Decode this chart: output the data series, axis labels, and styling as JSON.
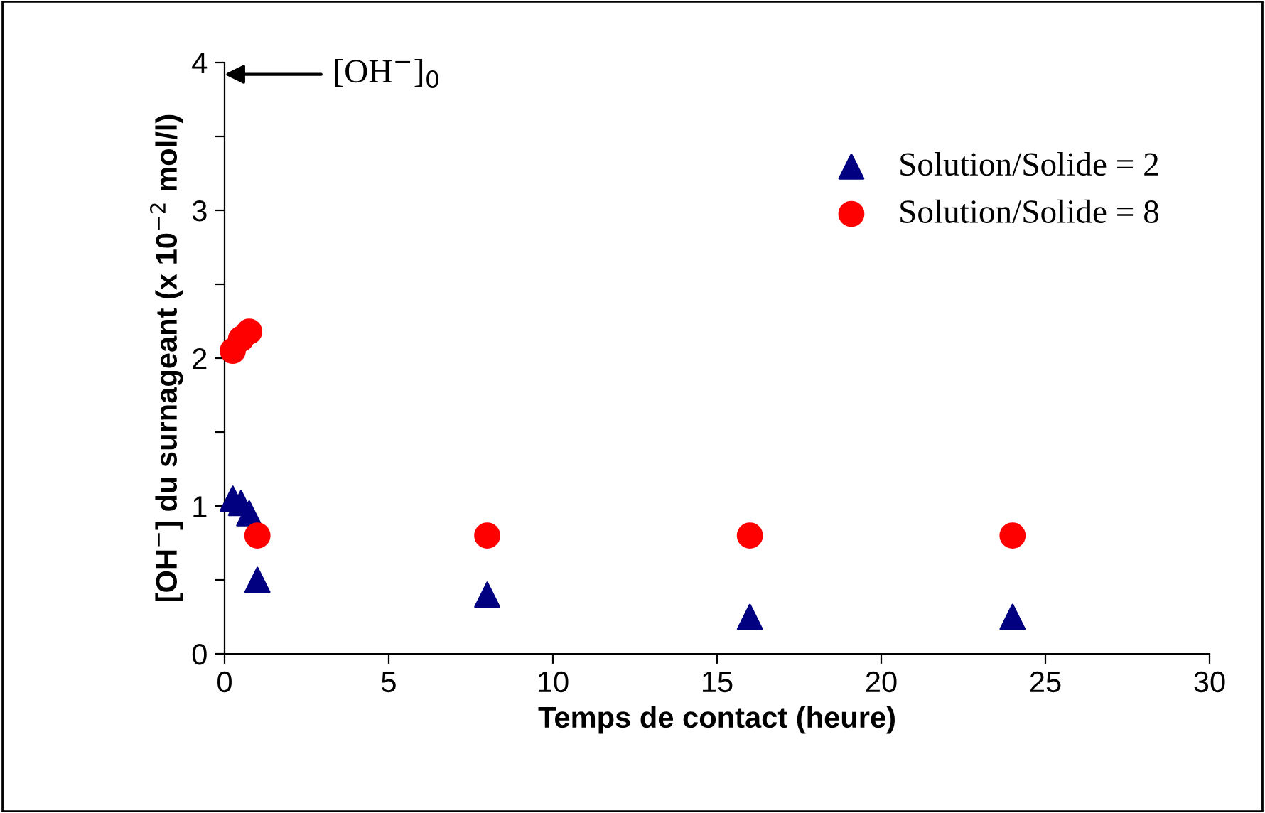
{
  "chart_data": {
    "type": "scatter",
    "xlabel": "Temps de contact (heure)",
    "ylabel": "[OH$^{−}$] du surnageant (x 10$^{−2}$ mol/l)",
    "xlim": [
      0,
      30
    ],
    "xticks": [
      0,
      5,
      10,
      15,
      20,
      25,
      30
    ],
    "ylim": [
      0,
      4
    ],
    "yticks": [
      0,
      {
        "value": 0.5,
        "label": null
      },
      1,
      {
        "value": 1.5,
        "label": null
      },
      2,
      {
        "value": 2.5,
        "label": null
      },
      3,
      {
        "value": 3.5,
        "label": null
      },
      4
    ],
    "grid": false,
    "legend": "top right",
    "annotations": [
      "[OH$^{−}$]$_{0}$"
    ],
    "series": [
      {
        "name": "Solution/Solide = 2",
        "color": "#000080",
        "marker": "triangle",
        "x": [
          0.25,
          0.5,
          0.75,
          1,
          8,
          16,
          24
        ],
        "values": [
          1.05,
          1.02,
          0.95,
          0.5,
          0.4,
          0.25,
          0.25
        ]
      },
      {
        "name": "Solution/Solide = 8",
        "color": "#ff0000",
        "marker": "circle",
        "x": [
          0.25,
          0.5,
          0.75,
          1,
          8,
          16,
          24
        ],
        "values": [
          2.05,
          2.13,
          2.18,
          0.8,
          0.8,
          0.8,
          0.8
        ]
      }
    ]
  }
}
